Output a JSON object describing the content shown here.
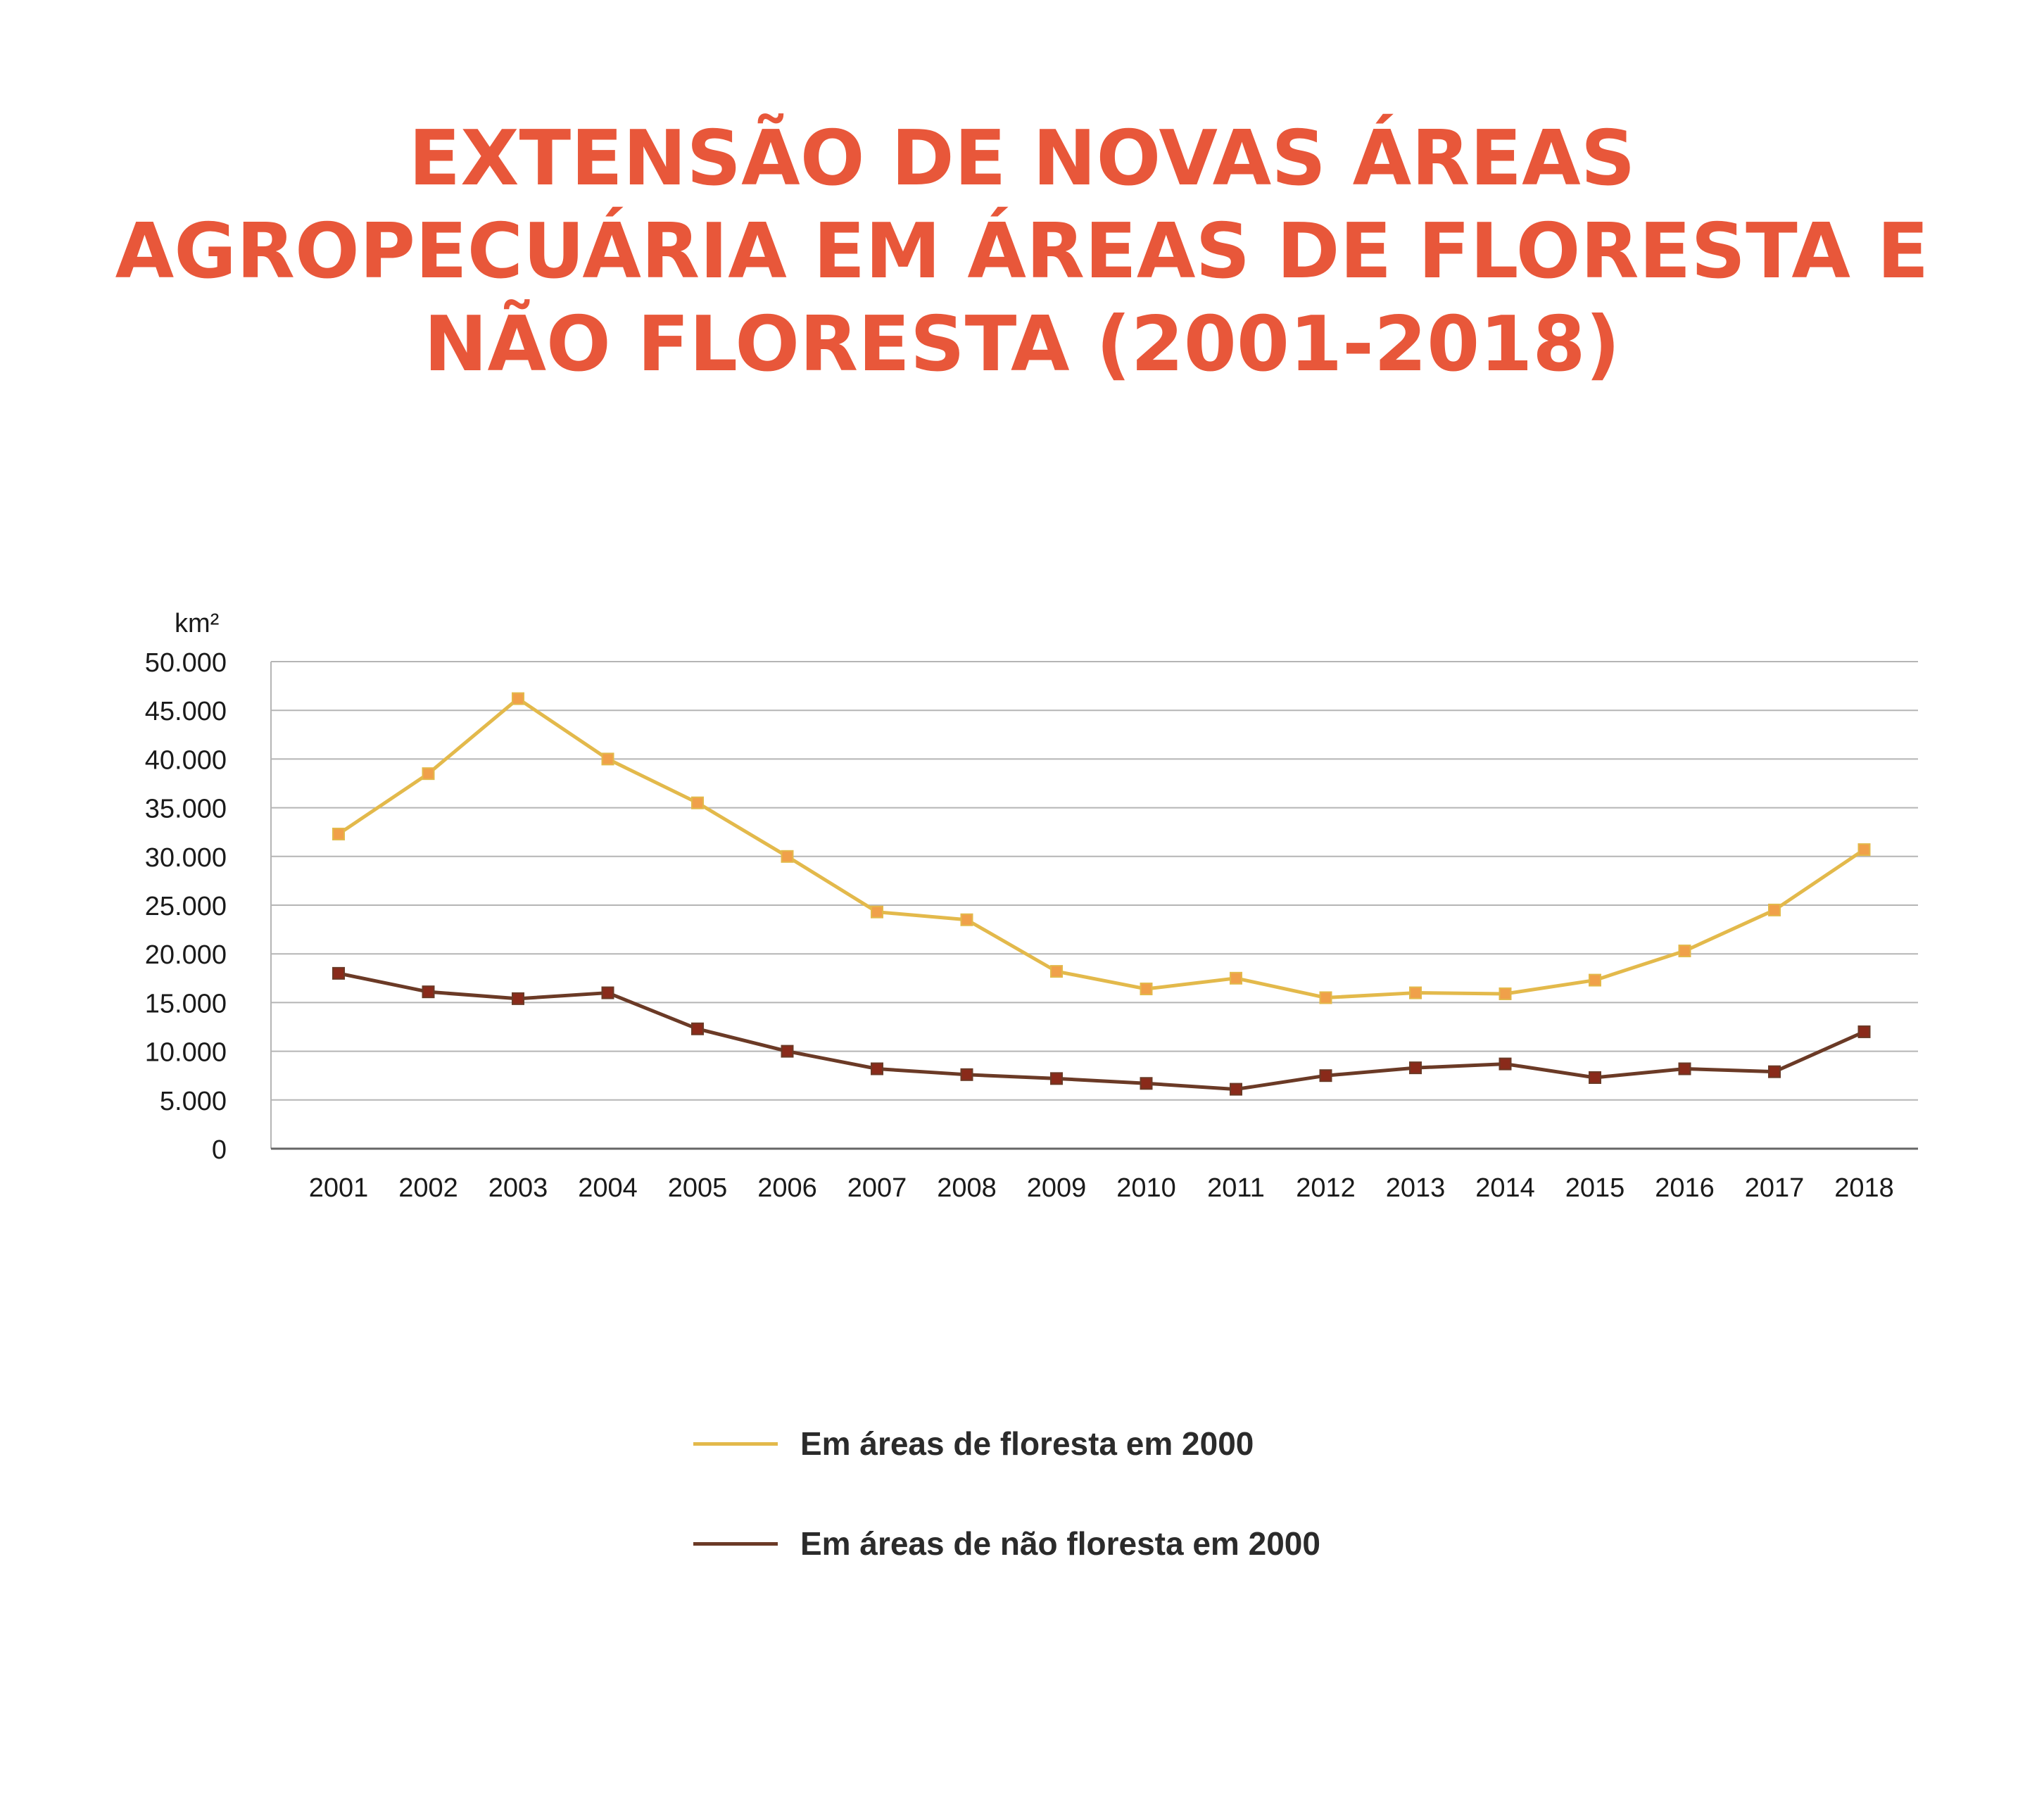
{
  "title_lines": [
    "EXTENSÃO DE NOVAS ÁREAS",
    "AGROPECUÁRIA EM ÁREAS DE FLORESTA E",
    "NÃO FLORESTA (2001-2018)"
  ],
  "chart_data": {
    "type": "line",
    "ylabel": "km²",
    "ylim": [
      0,
      50000
    ],
    "yticks": [
      "0",
      "5.000",
      "10.000",
      "15.000",
      "20.000",
      "25.000",
      "30.000",
      "35.000",
      "40.000",
      "45.000",
      "50.000"
    ],
    "x": [
      "2001",
      "2002",
      "2003",
      "2004",
      "2005",
      "2006",
      "2007",
      "2008",
      "2009",
      "2010",
      "2011",
      "2012",
      "2013",
      "2014",
      "2015",
      "2016",
      "2017",
      "2018"
    ],
    "grid": true,
    "legend_position": "bottom",
    "series": [
      {
        "name": "Em áreas de floresta em 2000",
        "color": "#e3b94b",
        "marker_color": "#f0a04a",
        "values": [
          32300,
          38500,
          46200,
          40000,
          35500,
          30000,
          24300,
          23500,
          18200,
          16400,
          17500,
          15500,
          16000,
          15900,
          17300,
          20300,
          24500,
          30700
        ]
      },
      {
        "name": "Em áreas de não floresta em 2000",
        "color": "#6b3a26",
        "marker_color": "#8a2a1a",
        "values": [
          18000,
          16100,
          15400,
          16000,
          12300,
          10000,
          8200,
          7600,
          7200,
          6700,
          6100,
          7500,
          8300,
          8700,
          7300,
          8200,
          7900,
          12000
        ]
      }
    ]
  }
}
